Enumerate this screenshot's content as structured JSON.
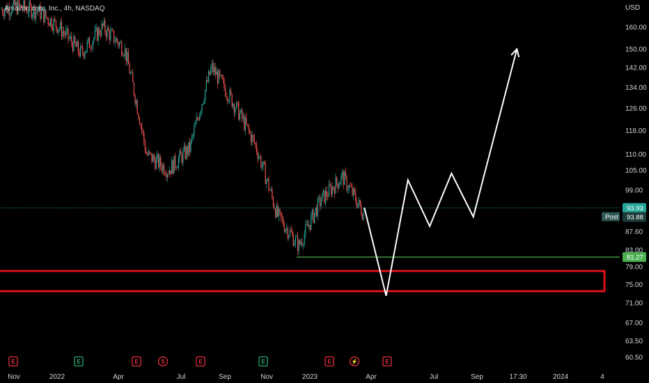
{
  "header": {
    "title": "Amazon.com, Inc., 4h, NASDAQ"
  },
  "chart_data": {
    "type": "candlestick",
    "symbol": "Amazon.com, Inc.",
    "interval": "4h",
    "exchange": "NASDAQ",
    "currency_label": "USD",
    "y_ticks": [
      160.0,
      150.0,
      142.0,
      134.0,
      126.0,
      118.0,
      110.0,
      105.0,
      99.0,
      93.93,
      87.6,
      83.0,
      79.0,
      75.0,
      71.0,
      67.0,
      63.5,
      60.5
    ],
    "y_tick_labels": [
      "160.00",
      "150.00",
      "142.00",
      "134.00",
      "126.00",
      "118.00",
      "110.00",
      "105.00",
      "99.00",
      "87.60",
      "83.00",
      "79.00",
      "75.00",
      "71.00",
      "67.00",
      "63.50",
      "60.50"
    ],
    "x_tick_labels": [
      "Nov",
      "2022",
      "Apr",
      "Jul",
      "Sep",
      "Nov",
      "2023",
      "Apr",
      "Jul",
      "Sep",
      "17:30",
      "2024",
      "4"
    ],
    "price_path": [
      {
        "date": "2021-10",
        "close": 168
      },
      {
        "date": "2021-11",
        "close": 170
      },
      {
        "date": "2021-12",
        "close": 168
      },
      {
        "date": "2022-01",
        "close": 160
      },
      {
        "date": "2022-02",
        "close": 148
      },
      {
        "date": "2022-03",
        "close": 160
      },
      {
        "date": "2022-04",
        "close": 150
      },
      {
        "date": "2022-05",
        "close": 110
      },
      {
        "date": "2022-06",
        "close": 105
      },
      {
        "date": "2022-07",
        "close": 112
      },
      {
        "date": "2022-08",
        "close": 142
      },
      {
        "date": "2022-09",
        "close": 128
      },
      {
        "date": "2022-10",
        "close": 113
      },
      {
        "date": "2022-11",
        "close": 92
      },
      {
        "date": "2022-12",
        "close": 84
      },
      {
        "date": "2023-01",
        "close": 96
      },
      {
        "date": "2023-02",
        "close": 103
      },
      {
        "date": "2023-03",
        "close": 92
      }
    ],
    "projection_path": [
      {
        "date": "2023-03",
        "price": 94
      },
      {
        "date": "2023-04",
        "price": 72.5
      },
      {
        "date": "2023-05",
        "price": 102
      },
      {
        "date": "2023-06",
        "price": 89
      },
      {
        "date": "2023-07",
        "price": 104
      },
      {
        "date": "2023-08",
        "price": 91.5
      },
      {
        "date": "2023-10",
        "price": 150
      }
    ],
    "support_line": {
      "price": 81.27,
      "label": "81.27",
      "color": "#4caf50"
    },
    "demand_zone": {
      "top": 78,
      "bottom": 73.5,
      "color": "#e0101a"
    },
    "current_price": {
      "label": "93.93",
      "color": "#26a69a"
    },
    "post_market": {
      "tag": "Post",
      "label": "93.88"
    },
    "event_markers": [
      {
        "type": "E",
        "kind": "earnings",
        "color": "#e5303a"
      },
      {
        "type": "E",
        "kind": "earnings",
        "color": "#22ab6f"
      },
      {
        "type": "E",
        "kind": "earnings",
        "color": "#e5303a"
      },
      {
        "type": "S",
        "kind": "split",
        "color": "#e5303a"
      },
      {
        "type": "E",
        "kind": "earnings",
        "color": "#e5303a"
      },
      {
        "type": "E",
        "kind": "earnings",
        "color": "#22ab6f"
      },
      {
        "type": "E",
        "kind": "earnings",
        "color": "#e5303a"
      },
      {
        "type": "⚡",
        "kind": "news",
        "color": "#e5303a"
      },
      {
        "type": "E",
        "kind": "earnings",
        "color": "#e5303a"
      }
    ],
    "colors": {
      "up": "#26a69a",
      "down": "#ef5350",
      "projection": "#ffffff",
      "background": "#000000",
      "grid": "none"
    },
    "grid": false
  }
}
